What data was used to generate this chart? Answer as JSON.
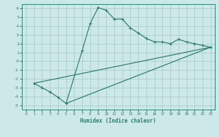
{
  "xlabel": "Humidex (Indice chaleur)",
  "background_color": "#cce8e8",
  "grid_color": "#aacccc",
  "line_color": "#2e7d6e",
  "xlim": [
    -0.5,
    23.5
  ],
  "ylim": [
    -5.5,
    6.5
  ],
  "xticks": [
    0,
    1,
    2,
    3,
    4,
    5,
    6,
    7,
    8,
    9,
    10,
    11,
    12,
    13,
    14,
    15,
    16,
    17,
    18,
    19,
    20,
    21,
    22,
    23
  ],
  "yticks": [
    -5,
    -4,
    -3,
    -2,
    -1,
    0,
    1,
    2,
    3,
    4,
    5,
    6
  ],
  "curve1_x": [
    1,
    2,
    3,
    4,
    5,
    7,
    8,
    9,
    10,
    11,
    12,
    13,
    14,
    15,
    16,
    17,
    18,
    19,
    20,
    21,
    22,
    23
  ],
  "curve1_y": [
    -2.5,
    -3.0,
    -3.5,
    -4.1,
    -4.8,
    1.2,
    4.3,
    6.1,
    5.8,
    4.8,
    4.8,
    3.8,
    3.2,
    2.6,
    2.2,
    2.2,
    2.0,
    2.5,
    2.2,
    2.0,
    1.8,
    1.6
  ],
  "line1_x": [
    1,
    23
  ],
  "line1_y": [
    -2.5,
    1.6
  ],
  "line2_x": [
    5,
    23
  ],
  "line2_y": [
    -4.8,
    1.6
  ]
}
